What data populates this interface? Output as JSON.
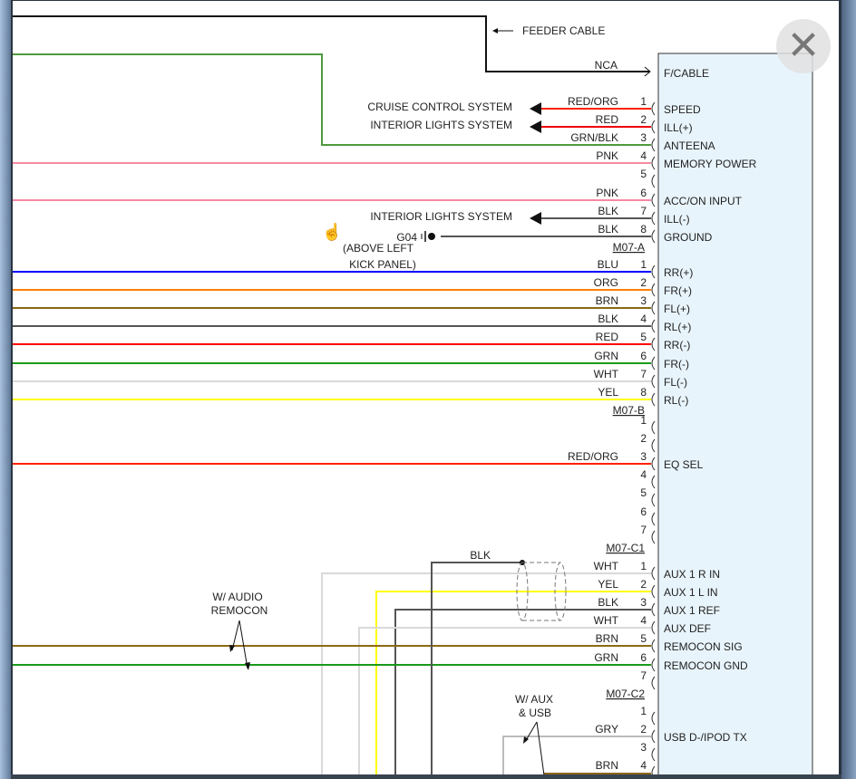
{
  "close_icon": "close-x-icon",
  "box_fill": "#e8f4fc",
  "feeder": {
    "label": "FEEDER CABLE",
    "wire_label": "NCA",
    "function": "F/CABLE",
    "color": "#111111"
  },
  "connectors": [
    {
      "label": "M07-A",
      "pins": [
        {
          "pin": "1",
          "wire": "RED/ORG",
          "function": "SPEED",
          "color": "#ff2200",
          "dest": "CRUISE CONTROL SYSTEM"
        },
        {
          "pin": "2",
          "wire": "RED",
          "function": "ILL(+)",
          "color": "#ee0000",
          "dest": "INTERIOR LIGHTS SYSTEM"
        },
        {
          "pin": "3",
          "wire": "GRN/BLK",
          "function": "ANTEENA",
          "color": "#4f9a3c"
        },
        {
          "pin": "4",
          "wire": "PNK",
          "function": "MEMORY POWER",
          "color": "#f58aa2"
        },
        {
          "pin": "5",
          "wire": "",
          "function": "",
          "color": ""
        },
        {
          "pin": "6",
          "wire": "PNK",
          "function": "ACC/ON INPUT",
          "color": "#f58aa2"
        },
        {
          "pin": "7",
          "wire": "BLK",
          "function": "ILL(-)",
          "color": "#555555",
          "dest": "INTERIOR LIGHTS SYSTEM"
        },
        {
          "pin": "8",
          "wire": "BLK",
          "function": "GROUND",
          "color": "#555555",
          "ground": "G04",
          "ground_note": [
            "(ABOVE LEFT",
            "KICK PANEL)"
          ]
        }
      ]
    },
    {
      "label": "M07-B",
      "pins": [
        {
          "pin": "1",
          "wire": "BLU",
          "function": "RR(+)",
          "color": "#0000ff"
        },
        {
          "pin": "2",
          "wire": "ORG",
          "function": "FR(+)",
          "color": "#ff8000"
        },
        {
          "pin": "3",
          "wire": "BRN",
          "function": "FL(+)",
          "color": "#8b6914"
        },
        {
          "pin": "4",
          "wire": "BLK",
          "function": "RL(+)",
          "color": "#555555"
        },
        {
          "pin": "5",
          "wire": "RED",
          "function": "RR(-)",
          "color": "#ff0000"
        },
        {
          "pin": "6",
          "wire": "GRN",
          "function": "FR(-)",
          "color": "#1a9a1a"
        },
        {
          "pin": "7",
          "wire": "WHT",
          "function": "FL(-)",
          "color": "#d9d9d9"
        },
        {
          "pin": "8",
          "wire": "YEL",
          "function": "RL(-)",
          "color": "#ffff00"
        }
      ]
    },
    {
      "label": "M07-C1",
      "pins": [
        {
          "pin": "1",
          "wire": "",
          "function": "",
          "color": ""
        },
        {
          "pin": "2",
          "wire": "",
          "function": "",
          "color": ""
        },
        {
          "pin": "3",
          "wire": "RED/ORG",
          "function": "EQ SEL",
          "color": "#ff2200"
        },
        {
          "pin": "4",
          "wire": "",
          "function": "",
          "color": ""
        },
        {
          "pin": "5",
          "wire": "",
          "function": "",
          "color": ""
        },
        {
          "pin": "6",
          "wire": "",
          "function": "",
          "color": ""
        },
        {
          "pin": "7",
          "wire": "",
          "function": "",
          "color": ""
        }
      ]
    },
    {
      "label": "M07-C2",
      "shield_wire": "BLK",
      "pins": [
        {
          "pin": "1",
          "wire": "WHT",
          "function": "AUX 1 R IN",
          "color": "#d9d9d9"
        },
        {
          "pin": "2",
          "wire": "YEL",
          "function": "AUX 1 L IN",
          "color": "#ffff00"
        },
        {
          "pin": "3",
          "wire": "BLK",
          "function": "AUX 1 REF",
          "color": "#555555"
        },
        {
          "pin": "4",
          "wire": "WHT",
          "function": "AUX DEF",
          "color": "#d9d9d9"
        },
        {
          "pin": "5",
          "wire": "BRN",
          "function": "REMOCON SIG",
          "color": "#8b6914"
        },
        {
          "pin": "6",
          "wire": "GRN",
          "function": "REMOCON GND",
          "color": "#1a9a1a"
        },
        {
          "pin": "7",
          "wire": "",
          "function": "",
          "color": ""
        }
      ]
    },
    {
      "label": "",
      "pins": [
        {
          "pin": "1",
          "wire": "",
          "function": "",
          "color": ""
        },
        {
          "pin": "2",
          "wire": "GRY",
          "function": "USB D-/IPOD TX",
          "color": "#bbbbbb"
        },
        {
          "pin": "3",
          "wire": "",
          "function": "",
          "color": ""
        },
        {
          "pin": "4",
          "wire": "BRN",
          "function": "",
          "color": "#8b6914"
        }
      ]
    }
  ],
  "notes": {
    "remocon": [
      "W/ AUDIO",
      "REMOCON"
    ],
    "aux_usb": [
      "W/ AUX",
      "& USB"
    ]
  }
}
